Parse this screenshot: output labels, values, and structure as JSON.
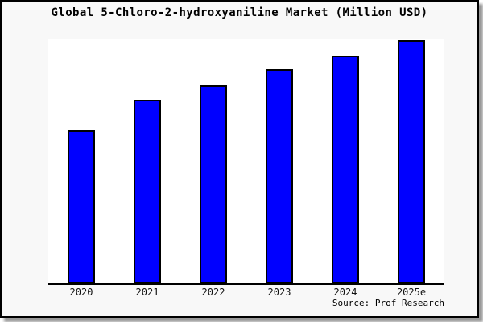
{
  "title": "Global 5-Chloro-2-hydroxyaniline Market (Million USD)",
  "source": "Source: Prof Research",
  "colors": {
    "bar_fill": "#0000ff",
    "bar_border": "#000000",
    "plot_background": "#ffffff",
    "card_background": "#f8f8f8",
    "frame_border": "#000000",
    "shadow": "#9a9a9a"
  },
  "chart_data": {
    "type": "bar",
    "title": "Global 5-Chloro-2-hydroxyaniline Market (Million USD)",
    "categories": [
      "2020",
      "2021",
      "2022",
      "2023",
      "2024",
      "2025e"
    ],
    "values": [
      63.1,
      75.5,
      81.6,
      88.2,
      93.7,
      100
    ],
    "xlabel": "",
    "ylabel": "",
    "ylim": [
      0,
      100.7
    ],
    "grid": false,
    "legend": false,
    "y_axis_labels_visible": false,
    "source": "Source: Prof Research"
  }
}
